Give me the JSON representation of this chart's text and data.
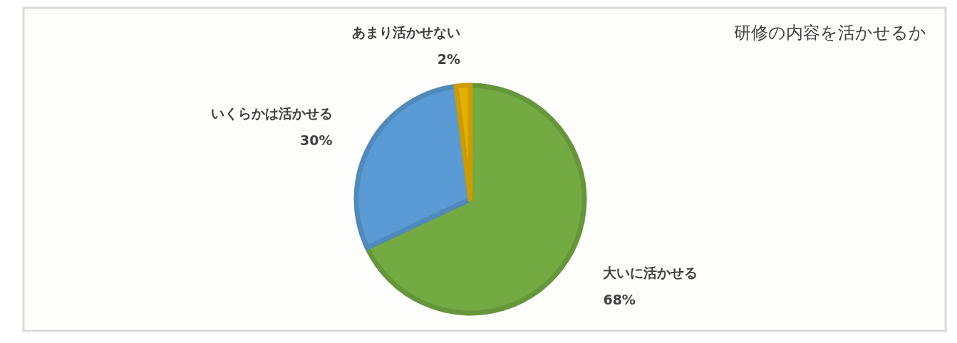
{
  "chart_data": {
    "type": "pie",
    "title": "研修の内容を活かせるか",
    "categories": [
      "大いに活かせる",
      "いくらかは活かせる",
      "あまり活かせない"
    ],
    "values": [
      68,
      30,
      2
    ],
    "colors": [
      "#74aa42",
      "#5b9bd5",
      "#e6b000"
    ],
    "value_labels": [
      "68%",
      "30%",
      "2%"
    ]
  }
}
